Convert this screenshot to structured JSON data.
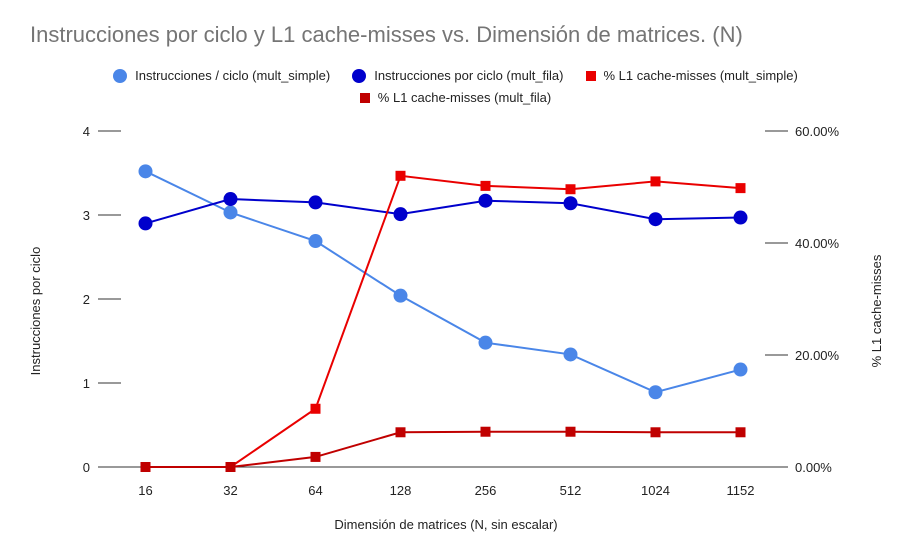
{
  "chart_data": {
    "type": "line",
    "title": "Instrucciones por ciclo y L1 cache-misses vs. Dimensión de matrices. (N)",
    "xlabel": "Dimensión de matrices (N, sin escalar)",
    "ylabel": "Instrucciones por ciclo",
    "y2label": "% L1 cache-misses",
    "categories": [
      "16",
      "32",
      "64",
      "128",
      "256",
      "512",
      "1024",
      "1152"
    ],
    "ylim": [
      0,
      4
    ],
    "y2lim": [
      0,
      60
    ],
    "yticks": [
      "0",
      "1",
      "2",
      "3",
      "4"
    ],
    "y2ticks": [
      "0.00%",
      "20.00%",
      "40.00%",
      "60.00%"
    ],
    "legend_position": "top",
    "grid": false,
    "series": [
      {
        "name": "Instrucciones / ciclo (mult_simple)",
        "axis": "left",
        "marker": "circle",
        "color": "#4a86e8",
        "values": [
          3.52,
          3.03,
          2.69,
          2.04,
          1.48,
          1.34,
          0.89,
          1.16
        ]
      },
      {
        "name": "Instrucciones por ciclo (mult_fila)",
        "axis": "left",
        "marker": "circle",
        "color": "#0000cc",
        "values": [
          2.9,
          3.19,
          3.15,
          3.01,
          3.17,
          3.14,
          2.95,
          2.97
        ]
      },
      {
        "name": "% L1 cache-misses (mult_simple)",
        "axis": "right",
        "marker": "square",
        "color": "#e90000",
        "values": [
          0.0,
          0.0,
          10.4,
          52.0,
          50.2,
          49.6,
          51.0,
          49.8
        ]
      },
      {
        "name": "% L1 cache-misses (mult_fila)",
        "axis": "right",
        "marker": "square",
        "color": "#c00000",
        "values": [
          0.0,
          0.0,
          1.8,
          6.2,
          6.3,
          6.3,
          6.2,
          6.2
        ]
      }
    ]
  }
}
